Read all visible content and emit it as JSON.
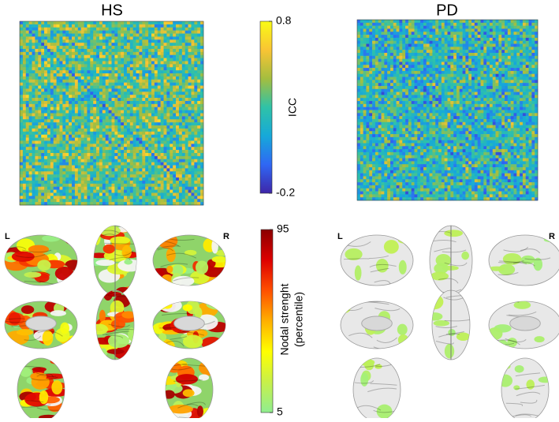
{
  "figure": {
    "matrices": {
      "panels": [
        {
          "title": "HS"
        },
        {
          "title": "PD"
        }
      ],
      "colorbar": {
        "label": "ICC",
        "lim": [
          -0.2,
          0.8
        ],
        "ticks": [
          -0.2,
          0.8
        ],
        "colors": [
          "#3e26a8",
          "#2f67f4",
          "#16a9d9",
          "#2fc2a7",
          "#a4be3f",
          "#f9c434",
          "#f9fb15"
        ]
      }
    },
    "brains": {
      "hemisphere_labels": [
        "L",
        "R"
      ],
      "colorbar": {
        "label": [
          "Nodal strenght",
          "(percentile)"
        ],
        "lim": [
          5,
          95
        ],
        "ticks": [
          5,
          95
        ],
        "colors": [
          "#90ee90",
          "#c8f04a",
          "#ffff00",
          "#ffb000",
          "#ff5000",
          "#dd0000",
          "#8b0000"
        ]
      }
    }
  }
}
